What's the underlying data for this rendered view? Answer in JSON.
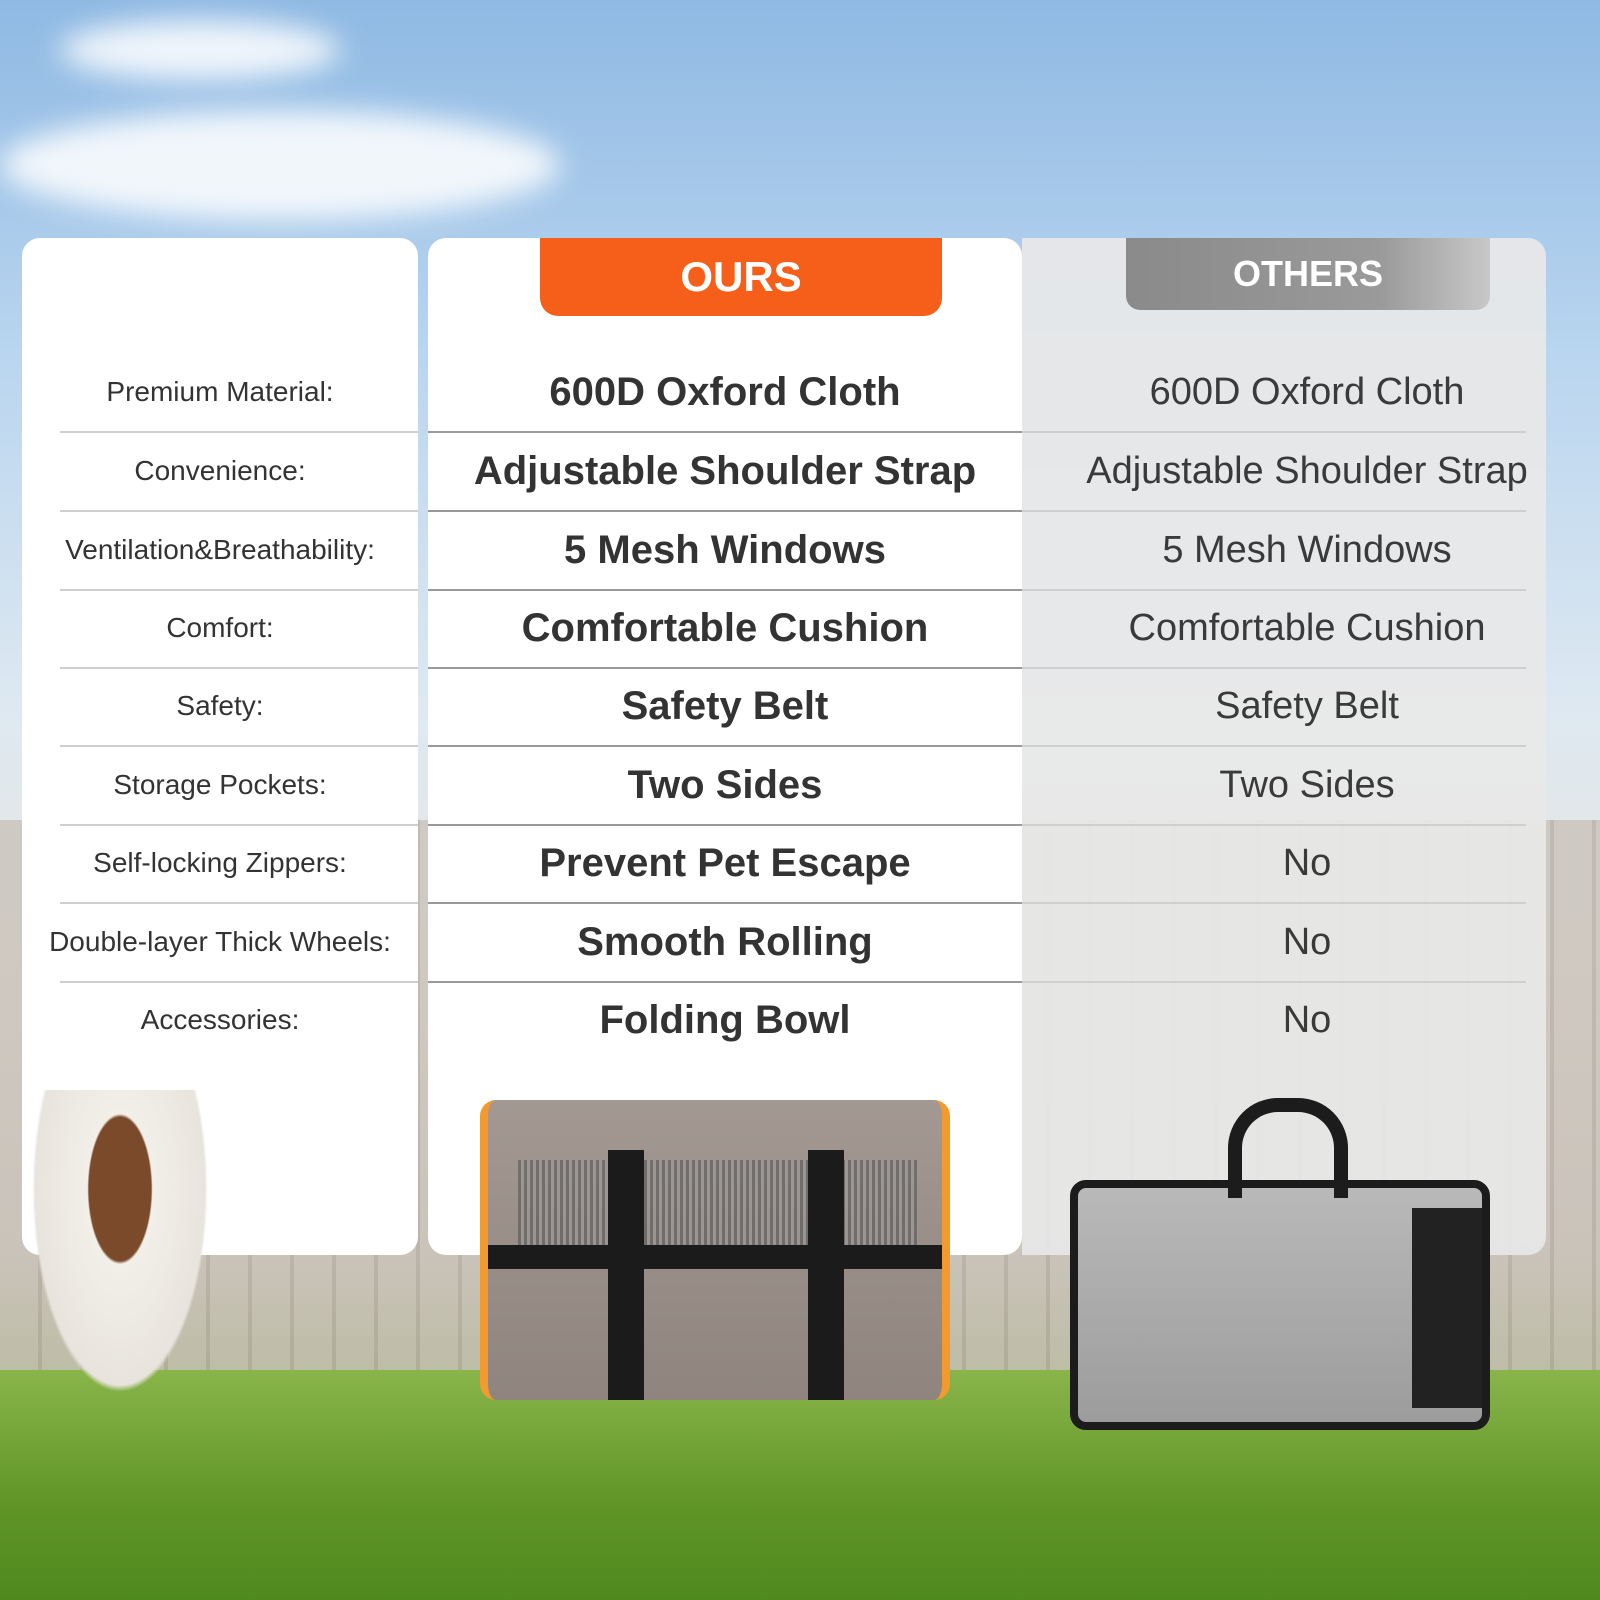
{
  "headers": {
    "ours": "OURS",
    "others": "OTHERS"
  },
  "colors": {
    "ours_accent": "#f65f19",
    "others_accent": "#8a8a8a"
  },
  "rows": [
    {
      "label": "Premium Material:",
      "ours": "600D Oxford Cloth",
      "others": "600D Oxford Cloth"
    },
    {
      "label": "Convenience:",
      "ours": "Adjustable Shoulder Strap",
      "others": "Adjustable Shoulder Strap"
    },
    {
      "label": "Ventilation&Breathability:",
      "ours": "5 Mesh Windows",
      "others": "5 Mesh Windows"
    },
    {
      "label": "Comfort:",
      "ours": "Comfortable Cushion",
      "others": "Comfortable Cushion"
    },
    {
      "label": "Safety:",
      "ours": "Safety Belt",
      "others": "Safety Belt"
    },
    {
      "label": "Storage Pockets:",
      "ours": "Two Sides",
      "others": "Two Sides"
    },
    {
      "label": "Self-locking Zippers:",
      "ours": "Prevent Pet Escape",
      "others": "No"
    },
    {
      "label": "Double-layer Thick Wheels:",
      "ours": "Smooth Rolling",
      "others": "No"
    },
    {
      "label": "Accessories:",
      "ours": "Folding Bowl",
      "others": "No"
    }
  ]
}
